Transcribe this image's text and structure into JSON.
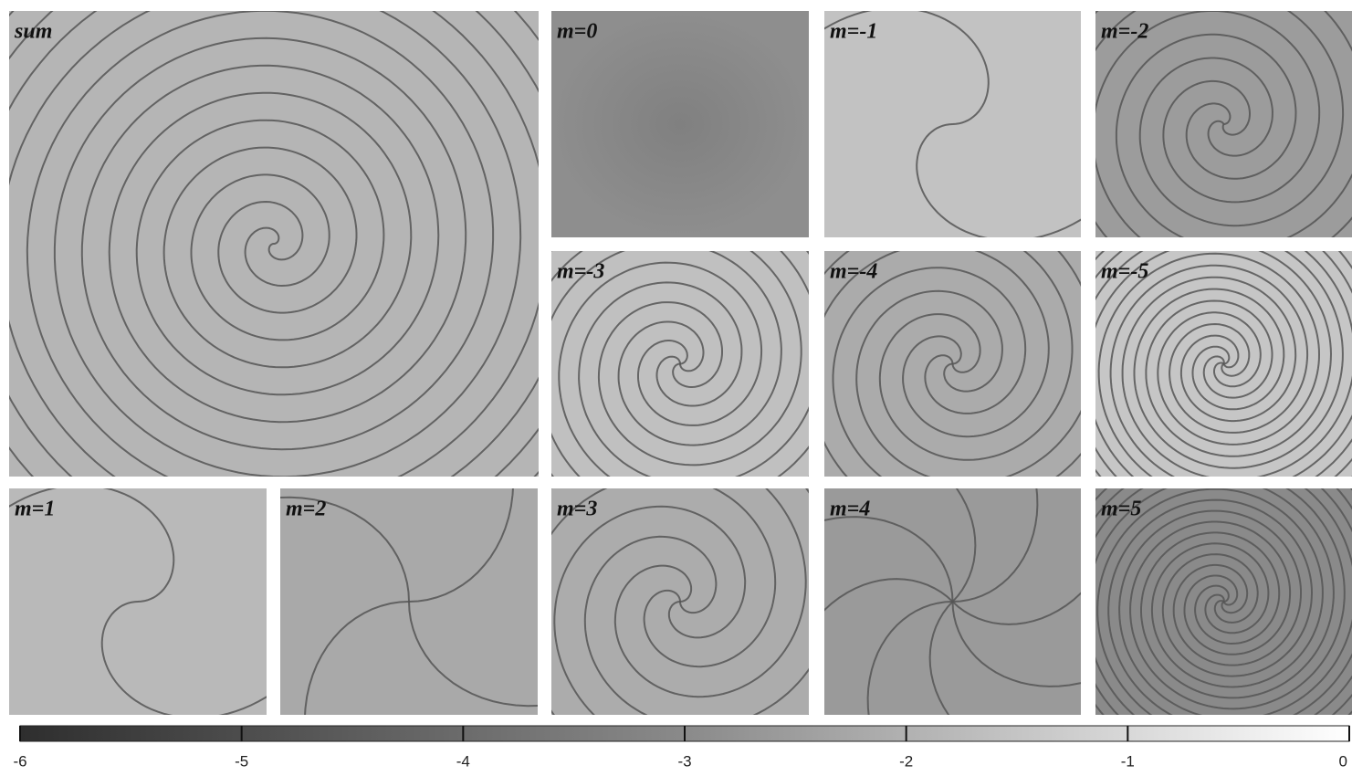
{
  "panels": [
    {
      "label": "sum"
    },
    {
      "label": "m=0"
    },
    {
      "label": "m=-1"
    },
    {
      "label": "m=-2"
    },
    {
      "label": "m=-3"
    },
    {
      "label": "m=-4"
    },
    {
      "label": "m=-5"
    },
    {
      "label": "m=1"
    },
    {
      "label": "m=2"
    },
    {
      "label": "m=3"
    },
    {
      "label": "m=4"
    },
    {
      "label": "m=5"
    }
  ],
  "colorbar": {
    "range": [
      -6,
      0
    ],
    "ticks": [
      -6,
      -5,
      -4,
      -3,
      -2,
      -1,
      0
    ]
  }
}
